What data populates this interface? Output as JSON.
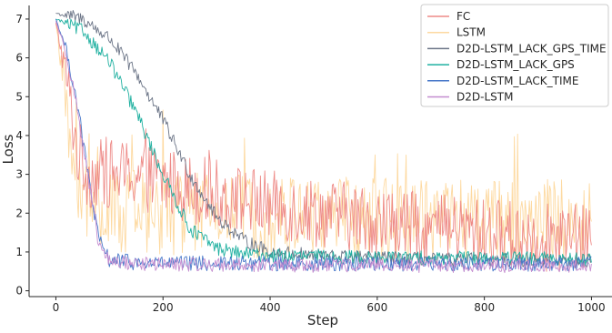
{
  "chart_data": {
    "type": "line",
    "xlabel": "Step",
    "ylabel": "Loss",
    "xlim": [
      -50,
      1040
    ],
    "ylim": [
      -0.15,
      7.35
    ],
    "xticks": [
      0,
      200,
      400,
      600,
      800,
      1000
    ],
    "yticks": [
      0,
      1,
      2,
      3,
      4,
      5,
      6,
      7
    ],
    "grid": false,
    "legend_position": "top-right",
    "series": [
      {
        "name": "FC",
        "color": "#ee8a87",
        "x": [
          0,
          20,
          40,
          60,
          100,
          150,
          200,
          300,
          400,
          500,
          600,
          700,
          800,
          900,
          1000
        ],
        "y": [
          6.9,
          5.5,
          3.6,
          3.0,
          3.0,
          3.0,
          2.8,
          2.5,
          2.2,
          2.0,
          1.8,
          1.6,
          1.5,
          1.4,
          1.3
        ],
        "noise": 0.9
      },
      {
        "name": "LSTM",
        "color": "#fdd9a0",
        "x": [
          0,
          20,
          40,
          60,
          100,
          150,
          200,
          300,
          400,
          500,
          600,
          700,
          800,
          900,
          1000
        ],
        "y": [
          6.9,
          4.5,
          2.6,
          2.2,
          2.0,
          2.0,
          2.0,
          2.0,
          1.9,
          1.9,
          1.9,
          1.8,
          1.8,
          1.8,
          1.8
        ],
        "noise": 1.1
      },
      {
        "name": "D2D-LSTM_LACK_GPS_TIME",
        "color": "#6c7587",
        "x": [
          0,
          50,
          100,
          150,
          200,
          250,
          300,
          350,
          400,
          500,
          600,
          700,
          800,
          900,
          1000
        ],
        "y": [
          7.15,
          7.0,
          6.5,
          5.6,
          4.4,
          3.0,
          1.9,
          1.3,
          1.0,
          0.9,
          0.85,
          0.8,
          0.8,
          0.78,
          0.75
        ],
        "noise": 0.18
      },
      {
        "name": "D2D-LSTM_LACK_GPS",
        "color": "#1fb0a0",
        "x": [
          0,
          50,
          100,
          150,
          200,
          250,
          300,
          350,
          400,
          500,
          600,
          700,
          800,
          900,
          1000
        ],
        "y": [
          7.0,
          6.7,
          5.9,
          4.6,
          3.0,
          1.6,
          1.1,
          0.95,
          0.9,
          0.88,
          0.85,
          0.85,
          0.84,
          0.83,
          0.82
        ],
        "noise": 0.18
      },
      {
        "name": "D2D-LSTM_LACK_TIME",
        "color": "#4777c9",
        "x": [
          0,
          20,
          40,
          60,
          80,
          100,
          150,
          200,
          300,
          400,
          600,
          800,
          1000
        ],
        "y": [
          7.0,
          6.2,
          4.8,
          3.0,
          1.3,
          0.8,
          0.72,
          0.7,
          0.7,
          0.7,
          0.7,
          0.7,
          0.7
        ],
        "noise": 0.2
      },
      {
        "name": "D2D-LSTM",
        "color": "#c48ccf",
        "x": [
          0,
          20,
          40,
          60,
          80,
          100,
          150,
          200,
          300,
          400,
          600,
          800,
          1000
        ],
        "y": [
          6.95,
          6.1,
          4.7,
          2.9,
          1.2,
          0.75,
          0.7,
          0.68,
          0.67,
          0.65,
          0.65,
          0.64,
          0.64
        ],
        "noise": 0.18
      }
    ]
  }
}
